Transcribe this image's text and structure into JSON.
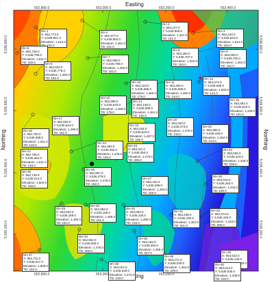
{
  "axes": {
    "x_label": "Easting",
    "y_label": "Northing",
    "x_ticks": [
      "652,800.0",
      "653,000.0",
      "653,200.0",
      "653,400.0"
    ],
    "y_ticks": [
      "5,536,800.0",
      "5,536,600.0",
      "5,536,400.0",
      "5,536,200.0"
    ]
  },
  "colormap": [
    "#1010ff",
    "#2060ff",
    "#00a0ff",
    "#00d8e8",
    "#00e070",
    "#7ee000",
    "#e8f000",
    "#ffb000",
    "#ff7000",
    "#ff2000"
  ],
  "wells": [
    {
      "name": "DH-1",
      "x": "652,773.0",
      "y": "5,536,857.3",
      "elev": "1,510.0",
      "td": "152.0"
    },
    {
      "name": "DH-2",
      "x": "652,977.0",
      "y": "5,536,852.0",
      "elev": "1,481.0",
      "td": "151.0"
    },
    {
      "name": "DH-3",
      "x": "653,127.0",
      "y": "5,536,869.0",
      "elev": "1,467.0",
      "td": "151.0"
    },
    {
      "name": "DH-4",
      "x": "653,410.0",
      "y": "5,536,844.0",
      "elev": "1,524.0",
      "td": "152.0"
    },
    {
      "name": "DH-5",
      "x": "652,745.0",
      "y": "5,536,796.0",
      "elev": "1,511.0",
      "td": "155.0"
    },
    {
      "name": "DH-6",
      "x": "652,823.0",
      "y": "5,536,778.0",
      "elev": "1,492.0",
      "td": "151.0"
    },
    {
      "name": "DH-7",
      "x": "652,966.0",
      "y": "5,536,789.0",
      "elev": "1,482.0",
      "td": "151.0"
    },
    {
      "name": "DH-8",
      "x": "653,260.0",
      "y": "5,536,787.0",
      "elev": "1,523.0",
      "td": "153.0"
    },
    {
      "name": "DH-9",
      "x": "653,500.0",
      "y": "5,536,792.0",
      "elev": "1,462.0",
      "td": "152.0"
    },
    {
      "name": "DH-10",
      "x": "653,103.0",
      "y": "5,536,696.0",
      "elev": "1,460.0",
      "td": "179.0"
    },
    {
      "name": "DH-11",
      "x": "653,255.0",
      "y": "5,536,695.0",
      "elev": "1,460.0",
      "td": "214.0"
    },
    {
      "name": "DH-12",
      "x": "653,374.0",
      "y": "5,536,689.0",
      "elev": "1,503.0",
      "td": "121.0"
    },
    {
      "name": "DH-13",
      "x": "652,998.0",
      "y": "5,536,633.0",
      "elev": "1,459.0",
      "td": "178.0"
    },
    {
      "name": "DH-14",
      "x": "653,136.0",
      "y": "5,536,599.0",
      "elev": "1,461.0",
      "td": "160.0"
    },
    {
      "name": "DH-15",
      "x": "653,462.0",
      "y": "5,536,622.0",
      "elev": "1,445.0",
      "td": "151.0"
    },
    {
      "name": "DH-16",
      "x": "652,700.0",
      "y": "5,536,468.0",
      "elev": "1,511.0",
      "td": "146.0"
    },
    {
      "name": "DH-17",
      "x": "652,826.0",
      "y": "5,536,524.0",
      "elev": "1,490.0",
      "td": "161.0"
    },
    {
      "name": "DH-18",
      "x": "653,118.0",
      "y": "5,536,523.0",
      "elev": "1,487.0",
      "td": "166.0"
    },
    {
      "name": "DH-19",
      "x": "653,263.0",
      "y": "5,536,473.0",
      "elev": "1,475.0",
      "td": "216.0"
    },
    {
      "name": "DH-20",
      "x": "653,395.0",
      "y": "5,536,429.0",
      "elev": "1,462.0",
      "td": "213.0"
    },
    {
      "name": "DH-21",
      "x": "652,708.0",
      "y": "5,536,384.0",
      "elev": "1,511.0",
      "td": "148.0"
    },
    {
      "name": "DH-22",
      "x": "652,963.0",
      "y": "5,536,392.0",
      "elev": "1,479.0",
      "td": "165.0"
    },
    {
      "name": "DH-23",
      "x": "653,111.0",
      "y": "5,536,350.0",
      "elev": "1,479.0",
      "td": "206.0"
    },
    {
      "name": "DH-24",
      "x": "653,506.0",
      "y": "5,536,343.0",
      "elev": "1,446.0",
      "td": "206.0"
    },
    {
      "name": "DH-25",
      "x": "652,749.0",
      "y": "5,536,314.0",
      "elev": "1,504.0",
      "td": "158.0"
    },
    {
      "name": "DH-26",
      "x": "652,967.0",
      "y": "5,536,279.0",
      "elev": "1,476.0",
      "td": "152.0"
    },
    {
      "name": "DH-27",
      "x": "653,162.0",
      "y": "5,536,288.0",
      "elev": "1,453.0",
      "td": "228.0"
    },
    {
      "name": "DH-28",
      "x": "653,410.0",
      "y": "5,536,262.0",
      "elev": "1,442.0",
      "td": "190.0"
    },
    {
      "name": "DH-29",
      "x": "652,831.0",
      "y": "5,536,168.0",
      "elev": "1,492.0",
      "td": "151.0"
    },
    {
      "name": "DH-30",
      "x": "652,983.0",
      "y": "5,536,169.0",
      "elev": "1,485.0",
      "td": "151.0"
    },
    {
      "name": "DH-31",
      "x": "653,082.0",
      "y": "5,536,155.0",
      "elev": "1,480.0",
      "td": "216.0"
    },
    {
      "name": "DH-32",
      "x": "653,238.0",
      "y": "5,536,160.0",
      "elev": "1,454.0",
      "td": "201.0"
    },
    {
      "name": "DH-33",
      "x": "653,374.0",
      "y": "5,536,162.0",
      "elev": "1,443.0",
      "td": "205.0"
    },
    {
      "name": "DH-34",
      "x": "652,964.0",
      "y": "5,536,083.0",
      "elev": "1,478.0",
      "td": "206.0"
    },
    {
      "name": "DH-35",
      "x": "653,162.0",
      "y": "5,536,093.0",
      "elev": "1,456.0",
      "td": "207.0"
    },
    {
      "name": "DH-36",
      "x": "653,522.0",
      "y": "5,536,130.0",
      "elev": "1,440.0",
      "td": "189.0"
    },
    {
      "name": "DH-37",
      "x": "652,711.0",
      "y": "5,536,017.0",
      "elev": "1,505.0",
      "td": "152.0"
    },
    {
      "name": "DH-38",
      "x": "653,024.0",
      "y": "5,536,028.0",
      "elev": "1,473.0",
      "td": "218.0"
    },
    {
      "name": "DH-39",
      "x": "653,271.0",
      "y": "5,536,030.0",
      "elev": "1,454.0",
      "td": "209.0"
    },
    {
      "name": "DH-40",
      "x": "653,512.0",
      "y": "5,536,035.0",
      "elev": "1,438.0",
      "td": "210.0"
    }
  ]
}
